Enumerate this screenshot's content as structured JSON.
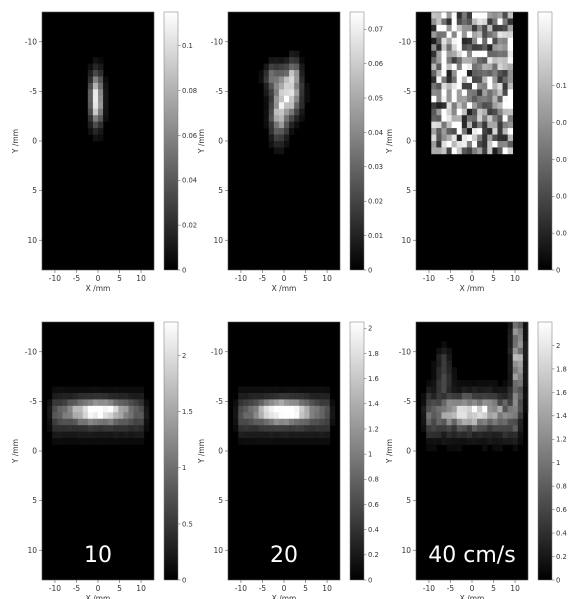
{
  "chart_data": [
    {
      "type": "heatmap",
      "panel": "top-left",
      "xlabel": "X /mm",
      "ylabel": "Y /mm",
      "xticks": [
        -10,
        -5,
        0,
        5,
        10
      ],
      "yticks": [
        -10,
        -5,
        0,
        5,
        10
      ],
      "xlim": [
        -13,
        13
      ],
      "ylim": [
        -13,
        13
      ],
      "y_inverted": true,
      "colorbar_ticks": [
        "0",
        "0.02",
        "0.04",
        "0.06",
        "0.08",
        "0.1"
      ],
      "colorbar_range": [
        0,
        0.115
      ],
      "blobs": [
        {
          "x": -0.4,
          "y": -4.2,
          "sx": 1.0,
          "sy": 1.7,
          "amp": 0.115
        }
      ],
      "texture": 0.15,
      "overlay_label": ""
    },
    {
      "type": "heatmap",
      "panel": "top-center",
      "xlabel": "X /mm",
      "ylabel": "Y /mm",
      "xticks": [
        -10,
        -5,
        0,
        5,
        10
      ],
      "yticks": [
        -10,
        -5,
        0,
        5,
        10
      ],
      "xlim": [
        -13,
        13
      ],
      "ylim": [
        -13,
        13
      ],
      "y_inverted": true,
      "colorbar_ticks": [
        "0",
        "0.01",
        "0.02",
        "0.03",
        "0.04",
        "0.05",
        "0.06",
        "0.07"
      ],
      "colorbar_range": [
        0,
        0.075
      ],
      "blobs": [
        {
          "x": 1.2,
          "y": -4.8,
          "sx": 1.7,
          "sy": 1.5,
          "amp": 0.07
        },
        {
          "x": -1.2,
          "y": -2.6,
          "sx": 1.3,
          "sy": 1.7,
          "amp": 0.05
        },
        {
          "x": -2.5,
          "y": -6.4,
          "sx": 1.4,
          "sy": 1.0,
          "amp": 0.03
        },
        {
          "x": 2.4,
          "y": -7.0,
          "sx": 0.9,
          "sy": 1.0,
          "amp": 0.03
        }
      ],
      "texture": 0.35,
      "overlay_label": ""
    },
    {
      "type": "heatmap",
      "panel": "top-right",
      "xlabel": "X /mm",
      "ylabel": "Y /mm",
      "xticks": [
        -10,
        -5,
        0,
        5,
        10
      ],
      "yticks": [
        -10,
        -5,
        0,
        5,
        10
      ],
      "xlim": [
        -13,
        13
      ],
      "ylim": [
        -13,
        13
      ],
      "y_inverted": true,
      "colorbar_ticks": [
        "0",
        "0.0",
        "0.0",
        "0.0",
        "0.0",
        "0.1"
      ],
      "colorbar_range": [
        0,
        0.14
      ],
      "blobs": [],
      "region": {
        "x": [
          -9,
          9
        ],
        "y": [
          -13,
          1
        ],
        "amp": 0.09
      },
      "texture": 0.75,
      "overlay_label": ""
    },
    {
      "type": "heatmap",
      "panel": "bottom-left",
      "xlabel": "X /mm",
      "ylabel": "Y /mm",
      "xticks": [
        -10,
        -5,
        0,
        5,
        10
      ],
      "yticks": [
        -10,
        -5,
        0,
        5,
        10
      ],
      "xlim": [
        -13,
        13
      ],
      "ylim": [
        -13,
        13
      ],
      "y_inverted": true,
      "colorbar_ticks": [
        "0",
        "0.5",
        "1",
        "1.5",
        "2"
      ],
      "colorbar_range": [
        0,
        2.3
      ],
      "blobs": [
        {
          "x": 0,
          "y": -4.0,
          "sx": 4.6,
          "sy": 0.7,
          "amp": 2.1
        }
      ],
      "band": {
        "y": -3.6,
        "sy": 1.4,
        "amp": 0.6
      },
      "texture": 0.2,
      "overlay_label": "10"
    },
    {
      "type": "heatmap",
      "panel": "bottom-center",
      "xlabel": "X /mm",
      "ylabel": "Y /mm",
      "xticks": [
        -10,
        -5,
        0,
        5,
        10
      ],
      "yticks": [
        -10,
        -5,
        0,
        5,
        10
      ],
      "xlim": [
        -13,
        13
      ],
      "ylim": [
        -13,
        13
      ],
      "y_inverted": true,
      "colorbar_ticks": [
        "0",
        "0.2",
        "0.4",
        "0.6",
        "0.8",
        "1",
        "1.2",
        "1.4",
        "1.6",
        "1.8",
        "2"
      ],
      "colorbar_range": [
        0,
        2.05
      ],
      "blobs": [
        {
          "x": 0,
          "y": -4.0,
          "sx": 4.2,
          "sy": 0.7,
          "amp": 1.9
        }
      ],
      "band": {
        "y": -3.6,
        "sy": 1.4,
        "amp": 0.6
      },
      "texture": 0.2,
      "overlay_label": "20"
    },
    {
      "type": "heatmap",
      "panel": "bottom-right",
      "xlabel": "X /mm",
      "ylabel": "Y /mm",
      "xticks": [
        -10,
        -5,
        0,
        5,
        10
      ],
      "yticks": [
        -10,
        -5,
        0,
        5,
        10
      ],
      "xlim": [
        -13,
        13
      ],
      "ylim": [
        -13,
        13
      ],
      "y_inverted": true,
      "colorbar_ticks": [
        "0",
        "0.2",
        "0.4",
        "0.6",
        "0.8",
        "1",
        "1.2",
        "1.4",
        "1.6",
        "1.8",
        "2"
      ],
      "colorbar_range": [
        0,
        2.2
      ],
      "blobs": [
        {
          "x": 0,
          "y": -4.0,
          "sx": 4.4,
          "sy": 0.8,
          "amp": 1.6
        },
        {
          "x": 10.6,
          "y": -9.5,
          "sx": 0.9,
          "sy": 3.3,
          "amp": 1.7
        },
        {
          "x": -6.5,
          "y": -8.0,
          "sx": 1.2,
          "sy": 1.6,
          "amp": 0.6
        }
      ],
      "band": {
        "y": -3.6,
        "sy": 1.6,
        "amp": 0.7
      },
      "texture": 0.55,
      "overlay_label": "40 cm/s"
    }
  ]
}
